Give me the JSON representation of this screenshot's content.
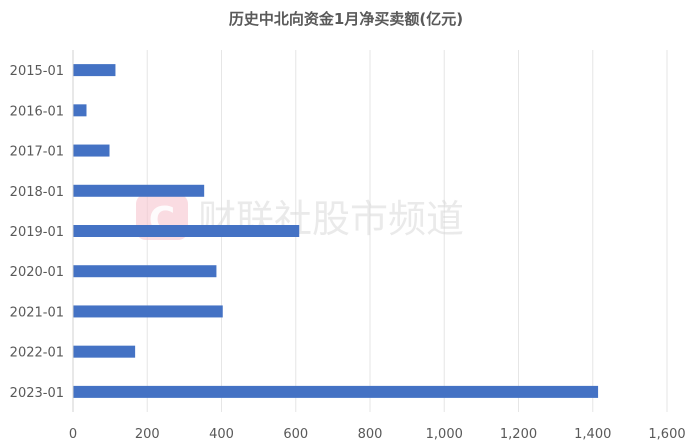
{
  "chart_data": {
    "type": "bar",
    "orientation": "horizontal",
    "title": "历史中北向资金1月净买卖额(亿元)",
    "categories": [
      "2015-01",
      "2016-01",
      "2017-01",
      "2018-01",
      "2019-01",
      "2020-01",
      "2021-01",
      "2022-01",
      "2023-01"
    ],
    "values": [
      113,
      35,
      97,
      352,
      608,
      385,
      402,
      166,
      1413
    ],
    "xlim": [
      0,
      1600
    ],
    "xticks": [
      0,
      200,
      400,
      600,
      800,
      1000,
      1200,
      1400,
      1600
    ],
    "xtick_labels": [
      "0",
      "200",
      "400",
      "600",
      "800",
      "1,000",
      "1,200",
      "1,400",
      "1,600"
    ],
    "xlabel": "",
    "ylabel": "",
    "grid": "vertical",
    "legend": "none",
    "bar_color": "#4472c4"
  },
  "watermark": {
    "text": "财联社股市频道",
    "logo_letter": "C",
    "logo_color": "#f7c5cf"
  }
}
